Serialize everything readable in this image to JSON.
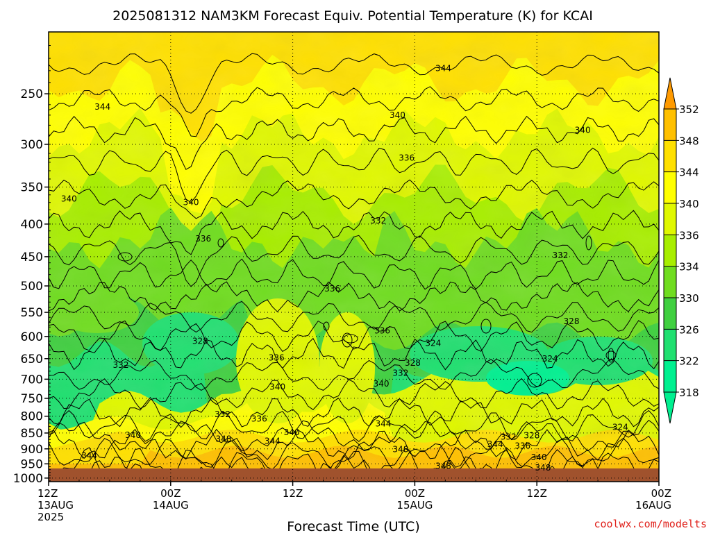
{
  "chart_data": {
    "type": "heatmap",
    "title": "2025081312 NAM3KM Forecast Equiv. Potential Temperature (K) for KCAI",
    "xlabel": "Forecast Time (UTC)",
    "ylabel": "",
    "credit": "coolwx.com/modelts",
    "x_ticks": [
      {
        "hour": 0,
        "lines": [
          "12Z",
          "13AUG",
          "2025"
        ]
      },
      {
        "hour": 12,
        "lines": [
          "00Z",
          "14AUG"
        ]
      },
      {
        "hour": 24,
        "lines": [
          "12Z"
        ]
      },
      {
        "hour": 36,
        "lines": [
          "00Z",
          "15AUG"
        ]
      },
      {
        "hour": 48,
        "lines": [
          "12Z"
        ]
      },
      {
        "hour": 60,
        "lines": [
          "00Z",
          "16AUG"
        ]
      }
    ],
    "xlim": [
      0,
      60
    ],
    "y_ticks": [
      "250",
      "300",
      "350",
      "400",
      "450",
      "500",
      "550",
      "600",
      "650",
      "700",
      "750",
      "800",
      "850",
      "900",
      "950",
      "1000"
    ],
    "ylim": [
      200,
      1013
    ],
    "yscale": "log",
    "colorbar": {
      "levels": [
        318,
        322,
        326,
        330,
        334,
        336,
        340,
        344,
        348,
        352
      ],
      "labels": [
        "318",
        "322",
        "326",
        "330",
        "334",
        "336",
        "340",
        "344",
        "348",
        "352"
      ],
      "colors": [
        "#00f090",
        "#20e070",
        "#40d040",
        "#70dd20",
        "#a8ee00",
        "#e0f800",
        "#ffff00",
        "#ffe000",
        "#ffc000",
        "#ff9a00"
      ],
      "extend": "both"
    },
    "contour_labels": [
      {
        "value": "344",
        "hour": 5.3,
        "p": 262
      },
      {
        "value": "344",
        "hour": 38.8,
        "p": 228
      },
      {
        "value": "340",
        "hour": 34.3,
        "p": 270
      },
      {
        "value": "340",
        "hour": 52.5,
        "p": 285
      },
      {
        "value": "340",
        "hour": 2.0,
        "p": 365
      },
      {
        "value": "340",
        "hour": 14.0,
        "p": 370
      },
      {
        "value": "336",
        "hour": 35.2,
        "p": 315
      },
      {
        "value": "336",
        "hour": 15.2,
        "p": 422
      },
      {
        "value": "336",
        "hour": 27.9,
        "p": 505
      },
      {
        "value": "336",
        "hour": 32.8,
        "p": 588
      },
      {
        "value": "336",
        "hour": 22.4,
        "p": 648
      },
      {
        "value": "336",
        "hour": 20.7,
        "p": 808
      },
      {
        "value": "336",
        "hour": 46.6,
        "p": 890
      },
      {
        "value": "332",
        "hour": 32.4,
        "p": 395
      },
      {
        "value": "332",
        "hour": 50.3,
        "p": 448
      },
      {
        "value": "332",
        "hour": 7.1,
        "p": 665
      },
      {
        "value": "332",
        "hour": 34.6,
        "p": 685
      },
      {
        "value": "332",
        "hour": 17.1,
        "p": 795
      },
      {
        "value": "332",
        "hour": 45.2,
        "p": 862
      },
      {
        "value": "328",
        "hour": 14.9,
        "p": 610
      },
      {
        "value": "328",
        "hour": 51.4,
        "p": 568
      },
      {
        "value": "328",
        "hour": 35.8,
        "p": 660
      },
      {
        "value": "328",
        "hour": 47.5,
        "p": 858
      },
      {
        "value": "324",
        "hour": 37.8,
        "p": 615
      },
      {
        "value": "324",
        "hour": 49.3,
        "p": 650
      },
      {
        "value": "324",
        "hour": 56.2,
        "p": 832
      },
      {
        "value": "340",
        "hour": 22.5,
        "p": 720
      },
      {
        "value": "340",
        "hour": 32.7,
        "p": 712
      },
      {
        "value": "340",
        "hour": 8.3,
        "p": 857
      },
      {
        "value": "340",
        "hour": 23.9,
        "p": 848
      },
      {
        "value": "340",
        "hour": 48.2,
        "p": 928
      },
      {
        "value": "344",
        "hour": 22.0,
        "p": 875
      },
      {
        "value": "344",
        "hour": 32.9,
        "p": 822
      },
      {
        "value": "344",
        "hour": 4.0,
        "p": 922
      },
      {
        "value": "344",
        "hour": 43.9,
        "p": 885
      },
      {
        "value": "348",
        "hour": 17.2,
        "p": 868
      },
      {
        "value": "348",
        "hour": 34.6,
        "p": 902
      },
      {
        "value": "348",
        "hour": 38.8,
        "p": 957
      },
      {
        "value": "348",
        "hour": 48.6,
        "p": 963
      }
    ]
  }
}
